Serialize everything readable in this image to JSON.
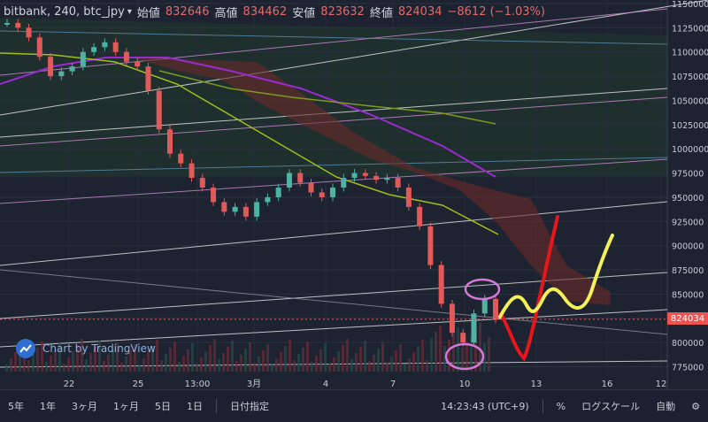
{
  "header": {
    "symbol": "bitbank, 240, btc_jpy",
    "open_label": "始値",
    "open_value": "832646",
    "high_label": "高値",
    "high_value": "834462",
    "low_label": "安値",
    "low_value": "823632",
    "close_label": "終値",
    "close_value": "824034",
    "change": "−8612 (−1.03%)"
  },
  "watermark": "Chart by TradingView",
  "last_price_tag": "824034",
  "toolbar": {
    "ranges": [
      "5年",
      "1年",
      "3ヶ月",
      "1ヶ月",
      "5日",
      "1日"
    ],
    "goto_date": "日付指定",
    "clock": "14:23:43 (UTC+9)",
    "percent": "%",
    "log_scale": "ログスケール",
    "auto": "自動"
  },
  "colors": {
    "background": "#1d2330",
    "up_candle": "#4fb3a4",
    "down_candle": "#e15a5a",
    "cloud": "#6b2a2a",
    "purple_ma": "#9b2bd0",
    "olive_ma": "#9fbf1a",
    "red_hand_drawn": "#e8161b",
    "yellow_hand_drawn": "#f3f05a",
    "pink_circle": "#d27ad6"
  },
  "chart_data": {
    "type": "candlestick",
    "title": "",
    "ylim": [
      770000,
      1150000
    ],
    "y_ticks": [
      775000,
      800000,
      825000,
      850000,
      875000,
      900000,
      925000,
      950000,
      975000,
      1000000,
      1025000,
      1050000,
      1075000,
      1100000,
      1125000,
      1150000
    ],
    "x_tick_labels": [
      "22",
      "25",
      "13:00",
      "3月",
      "4",
      "7",
      "10",
      "13",
      "16",
      "12"
    ],
    "grid": true,
    "series": [
      {
        "name": "",
        "values": [
          1130000,
          1125000,
          1115000,
          1095000,
          1075000,
          1080000,
          1085000,
          1100000,
          1105000,
          1110000,
          1100000,
          1090000,
          1085000,
          1060000,
          1020000,
          995000,
          985000,
          970000,
          960000,
          945000,
          935000,
          940000,
          930000,
          945000,
          950000,
          960000,
          975000,
          965000,
          955000,
          950000,
          960000,
          970000,
          975000,
          972000,
          968000,
          970000,
          960000,
          940000,
          920000,
          880000,
          840000,
          810000,
          800000,
          830000,
          845000,
          824034
        ]
      }
    ],
    "close": 824034
  }
}
